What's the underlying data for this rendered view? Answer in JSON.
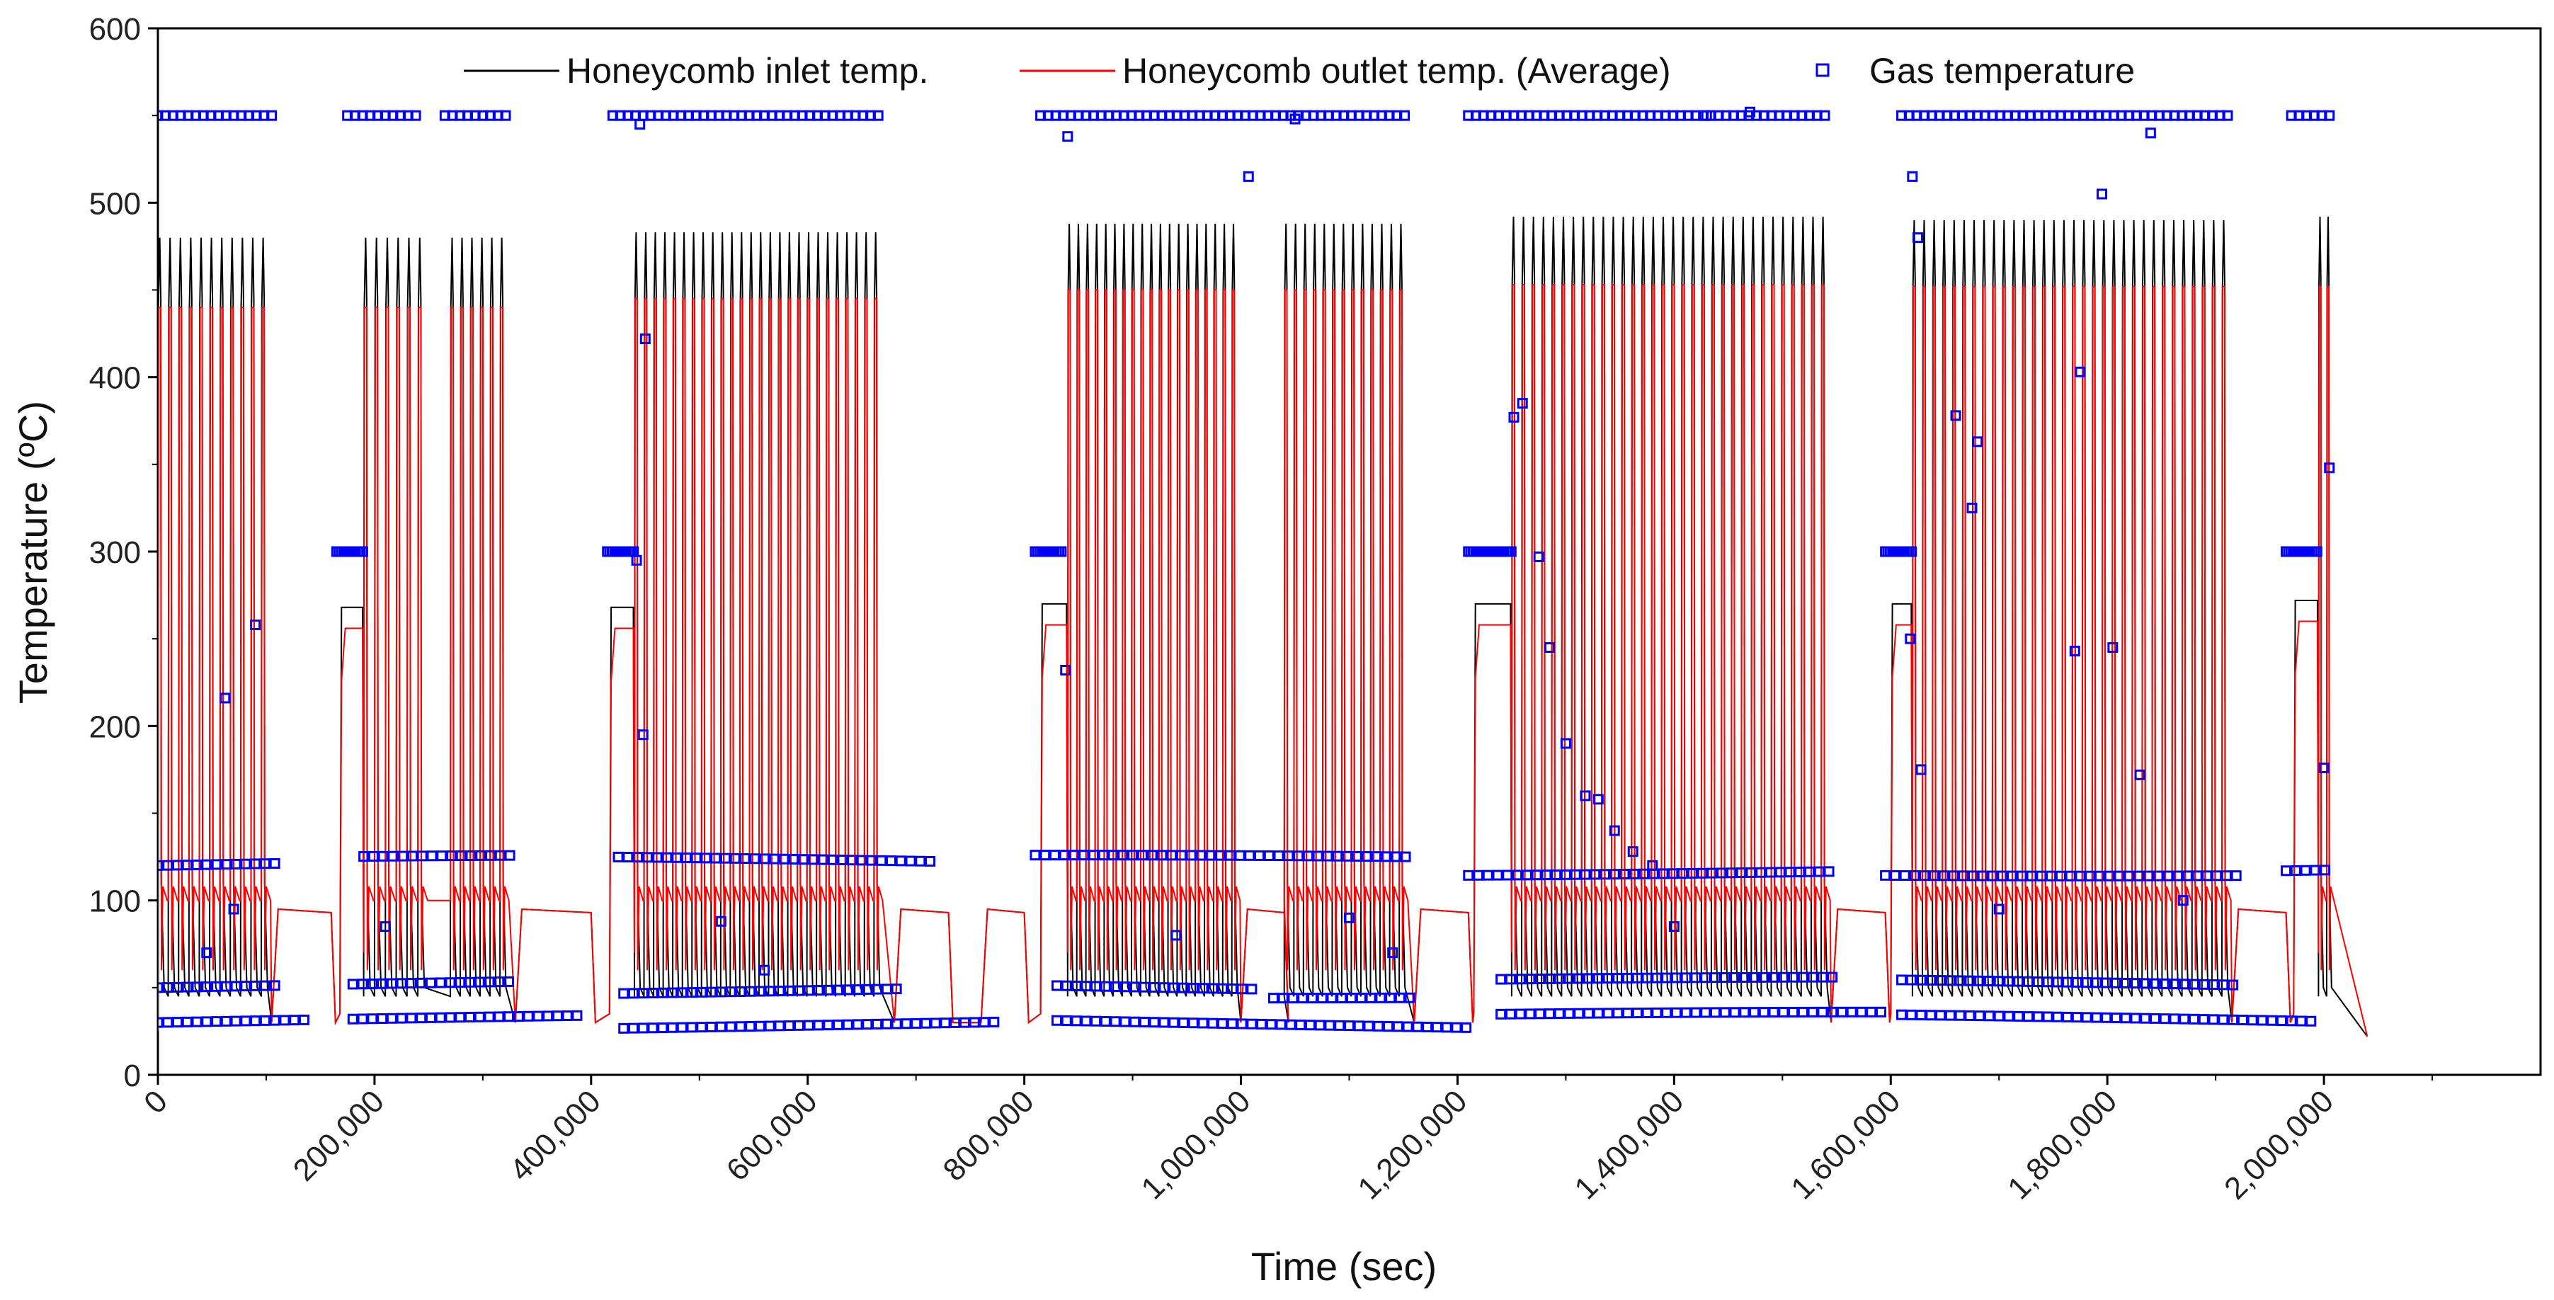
{
  "chart_data": {
    "type": "line",
    "title": "",
    "xlabel": "Time (sec)",
    "ylabel": "Temperature (ºC)",
    "xlim": [
      0,
      2200000
    ],
    "ylim": [
      0,
      600
    ],
    "grid": false,
    "legend_position": "top",
    "x_ticks": [
      0,
      200000,
      400000,
      600000,
      800000,
      1000000,
      1200000,
      1400000,
      1600000,
      1800000,
      2000000
    ],
    "x_tick_labels": [
      "0",
      "200,000",
      "400,000",
      "600,000",
      "800,000",
      "1,000,000",
      "1,200,000",
      "1,400,000",
      "1,600,000",
      "1,800,000",
      "2,000,000"
    ],
    "y_ticks": [
      0,
      100,
      200,
      300,
      400,
      500,
      600
    ],
    "y_tick_labels": [
      "0",
      "100",
      "200",
      "300",
      "400",
      "500",
      "600"
    ],
    "series": [
      {
        "name": "Honeycomb inlet temp.",
        "kind": "line",
        "color": "#000000"
      },
      {
        "name": "Honeycomb outlet temp. (Average)",
        "kind": "line",
        "color": "#ff0000"
      },
      {
        "name": "Gas temperature",
        "kind": "scatter",
        "color": "#0000ff",
        "marker": "open-square"
      }
    ],
    "cycle_series": {
      "description": "Repeated heating cycles: inlet peaks, outlet peaks, baseline near 95-105 between cycles",
      "segments": [
        {
          "start": 0,
          "end": 105000,
          "cycles": 11,
          "inlet_peak": 480,
          "outlet_peak": 440,
          "baseline": 100
        },
        {
          "start": 190000,
          "end": 250000,
          "cycles": 6,
          "inlet_peak": 480,
          "outlet_peak": 440,
          "baseline": 100
        },
        {
          "start": 270000,
          "end": 325000,
          "cycles": 6,
          "inlet_peak": 480,
          "outlet_peak": 440,
          "baseline": 100
        },
        {
          "start": 440000,
          "end": 670000,
          "cycles": 26,
          "inlet_peak": 483,
          "outlet_peak": 445,
          "baseline": 100
        },
        {
          "start": 840000,
          "end": 1000000,
          "cycles": 19,
          "inlet_peak": 488,
          "outlet_peak": 450,
          "baseline": 100
        },
        {
          "start": 1040000,
          "end": 1155000,
          "cycles": 13,
          "inlet_peak": 488,
          "outlet_peak": 450,
          "baseline": 100
        },
        {
          "start": 1250000,
          "end": 1545000,
          "cycles": 32,
          "inlet_peak": 492,
          "outlet_peak": 453,
          "baseline": 100
        },
        {
          "start": 1620000,
          "end": 1915000,
          "cycles": 32,
          "inlet_peak": 490,
          "outlet_peak": 452,
          "baseline": 100
        },
        {
          "start": 1995000,
          "end": 2010000,
          "cycles": 2,
          "inlet_peak": 492,
          "outlet_peak": 452,
          "baseline": 100
        }
      ],
      "preheat_steps": [
        {
          "start": 168000,
          "end": 190000,
          "inlet": 268,
          "outlet": 256
        },
        {
          "start": 417000,
          "end": 440000,
          "inlet": 268,
          "outlet": 256
        },
        {
          "start": 815000,
          "end": 840000,
          "inlet": 270,
          "outlet": 258
        },
        {
          "start": 1215000,
          "end": 1250000,
          "inlet": 270,
          "outlet": 258
        },
        {
          "start": 1600000,
          "end": 1620000,
          "inlet": 270,
          "outlet": 258
        },
        {
          "start": 1972000,
          "end": 1995000,
          "inlet": 272,
          "outlet": 260
        }
      ],
      "idle_plateaus": [
        {
          "start": 105000,
          "end": 160000,
          "value": 95
        },
        {
          "start": 330000,
          "end": 400000,
          "value": 95
        },
        {
          "start": 680000,
          "end": 730000,
          "value": 95
        },
        {
          "start": 760000,
          "end": 800000,
          "value": 95
        },
        {
          "start": 1000000,
          "end": 1040000,
          "value": 95
        },
        {
          "start": 1160000,
          "end": 1210000,
          "value": 95
        },
        {
          "start": 1545000,
          "end": 1595000,
          "value": 95
        },
        {
          "start": 1915000,
          "end": 1965000,
          "value": 95
        }
      ]
    },
    "gas_temperature_bands": [
      {
        "value": 550,
        "x": [
          0,
          105000,
          175000,
          240000,
          265000,
          325000,
          420000,
          670000,
          815000,
          1155000,
          1210000,
          1545000,
          1610000,
          1915000,
          1970000,
          2010000
        ]
      },
      {
        "value": 300,
        "x": [
          165000,
          190000,
          415000,
          440000,
          810000,
          835000,
          1210000,
          1250000,
          1595000,
          1620000,
          1965000,
          1995000
        ]
      },
      {
        "value": 120,
        "x": [
          0,
          115000,
          190000,
          330000,
          425000,
          720000,
          810000,
          1160000,
          1210000,
          1550000,
          1595000,
          1920000,
          1965000,
          2005000
        ]
      },
      {
        "value": 50,
        "x": [
          0,
          115000,
          180000,
          330000,
          430000,
          690000,
          830000,
          1010000,
          1030000,
          1160000,
          1240000,
          1550000,
          1610000,
          1920000
        ]
      },
      {
        "value": 30,
        "x": [
          0,
          140000,
          180000,
          390000,
          430000,
          780000,
          830000,
          1210000,
          1240000,
          1595000,
          1610000,
          1990000
        ]
      }
    ],
    "gas_temperature_outliers": [
      [
        62000,
        216
      ],
      [
        90000,
        258
      ],
      [
        445000,
        545
      ],
      [
        450000,
        422
      ],
      [
        442000,
        295
      ],
      [
        448000,
        195
      ],
      [
        840000,
        538
      ],
      [
        838000,
        232
      ],
      [
        1007000,
        515
      ],
      [
        1050000,
        548
      ],
      [
        1252000,
        377
      ],
      [
        1260000,
        385
      ],
      [
        1275000,
        297
      ],
      [
        1285000,
        245
      ],
      [
        1300000,
        190
      ],
      [
        1318000,
        160
      ],
      [
        1330000,
        158
      ],
      [
        1345000,
        140
      ],
      [
        1362000,
        128
      ],
      [
        1380000,
        120
      ],
      [
        1430000,
        550
      ],
      [
        1470000,
        552
      ],
      [
        1620000,
        515
      ],
      [
        1618000,
        250
      ],
      [
        1625000,
        480
      ],
      [
        1628000,
        175
      ],
      [
        1660000,
        378
      ],
      [
        1680000,
        363
      ],
      [
        1675000,
        325
      ],
      [
        1770000,
        243
      ],
      [
        1775000,
        403
      ],
      [
        1795000,
        505
      ],
      [
        1805000,
        245
      ],
      [
        1830000,
        172
      ],
      [
        1840000,
        540
      ],
      [
        2005000,
        348
      ],
      [
        2000000,
        176
      ],
      [
        45000,
        70
      ],
      [
        70000,
        95
      ],
      [
        210000,
        85
      ],
      [
        520000,
        88
      ],
      [
        560000,
        60
      ],
      [
        940000,
        80
      ],
      [
        1100000,
        90
      ],
      [
        1140000,
        70
      ],
      [
        1400000,
        85
      ],
      [
        1700000,
        95
      ],
      [
        1870000,
        100
      ]
    ]
  }
}
